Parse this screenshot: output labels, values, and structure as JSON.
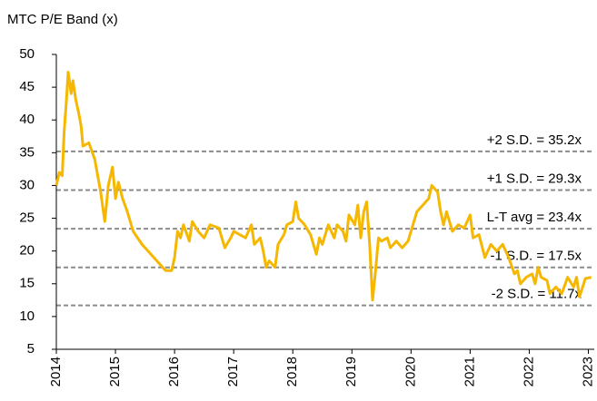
{
  "chart_data": {
    "type": "line",
    "title": "MTC P/E Band (x)",
    "xlim": [
      2014,
      2023.1
    ],
    "xticks": [
      2014,
      2015,
      2016,
      2017,
      2018,
      2019,
      2020,
      2021,
      2022,
      2023
    ],
    "ylim": [
      5,
      50
    ],
    "yticks": [
      5,
      10,
      15,
      20,
      25,
      30,
      35,
      40,
      45,
      50
    ],
    "series": [
      {
        "name": "P/E",
        "color": "#f5b700",
        "x": [
          2014.0,
          2014.05,
          2014.1,
          2014.13,
          2014.17,
          2014.2,
          2014.25,
          2014.28,
          2014.33,
          2014.38,
          2014.42,
          2014.45,
          2014.55,
          2014.65,
          2014.75,
          2014.82,
          2014.88,
          2014.95,
          2015.0,
          2015.05,
          2015.12,
          2015.2,
          2015.3,
          2015.45,
          2015.6,
          2015.75,
          2015.85,
          2015.95,
          2016.0,
          2016.05,
          2016.1,
          2016.15,
          2016.25,
          2016.3,
          2016.4,
          2016.5,
          2016.6,
          2016.75,
          2016.85,
          2016.95,
          2017.0,
          2017.1,
          2017.2,
          2017.3,
          2017.35,
          2017.45,
          2017.5,
          2017.55,
          2017.6,
          2017.7,
          2017.75,
          2017.85,
          2017.9,
          2018.0,
          2018.05,
          2018.1,
          2018.2,
          2018.3,
          2018.4,
          2018.45,
          2018.5,
          2018.6,
          2018.7,
          2018.75,
          2018.85,
          2018.9,
          2018.95,
          2019.05,
          2019.1,
          2019.15,
          2019.2,
          2019.25,
          2019.3,
          2019.35,
          2019.4,
          2019.45,
          2019.5,
          2019.6,
          2019.65,
          2019.75,
          2019.85,
          2019.95,
          2020.0,
          2020.1,
          2020.2,
          2020.3,
          2020.35,
          2020.45,
          2020.5,
          2020.55,
          2020.6,
          2020.7,
          2020.8,
          2020.9,
          2021.0,
          2021.05,
          2021.15,
          2021.25,
          2021.35,
          2021.45,
          2021.55,
          2021.65,
          2021.75,
          2021.8,
          2021.85,
          2021.95,
          2022.05,
          2022.1,
          2022.15,
          2022.2,
          2022.3,
          2022.35,
          2022.45,
          2022.55,
          2022.65,
          2022.75,
          2022.8,
          2022.85,
          2022.95,
          2023.05
        ],
        "values": [
          30,
          32,
          31.5,
          38,
          43,
          47.3,
          44,
          46,
          43,
          41,
          39,
          36,
          36.5,
          34,
          29,
          24.5,
          30,
          32.8,
          28,
          30.5,
          28,
          26,
          23,
          21,
          19.5,
          18,
          17,
          17,
          19,
          23,
          22,
          24,
          21.5,
          24.5,
          23,
          22,
          24,
          23.5,
          20.5,
          22,
          23,
          22.5,
          22,
          24,
          21,
          22,
          20,
          17.5,
          18.5,
          17.5,
          21,
          22.5,
          24,
          24.5,
          27.5,
          25,
          24,
          22.5,
          19.5,
          22,
          21,
          24,
          22,
          24,
          23,
          21.5,
          25.5,
          24,
          27,
          22,
          26,
          27.5,
          21,
          12.5,
          17,
          22,
          21.5,
          22,
          20.5,
          21.5,
          20.5,
          21.5,
          23,
          26,
          27,
          28,
          30,
          29,
          26,
          24,
          26,
          23,
          24,
          23.5,
          25.5,
          22,
          22.5,
          19,
          21,
          20,
          21,
          19,
          16.5,
          17,
          15,
          16,
          16.5,
          15,
          17.5,
          16,
          15.5,
          13.5,
          14.5,
          13.5,
          16,
          14.5,
          16,
          13,
          15.8,
          16
        ]
      }
    ],
    "bands": [
      {
        "value": 35.2,
        "label": "+2 S.D. = 35.2x"
      },
      {
        "value": 29.3,
        "label": "+1 S.D. = 29.3x"
      },
      {
        "value": 23.4,
        "label": "L-T avg = 23.4x"
      },
      {
        "value": 17.5,
        "label": "-1 S.D. = 17.5x"
      },
      {
        "value": 11.7,
        "label": "-2 S.D. = 11.7x"
      }
    ]
  }
}
